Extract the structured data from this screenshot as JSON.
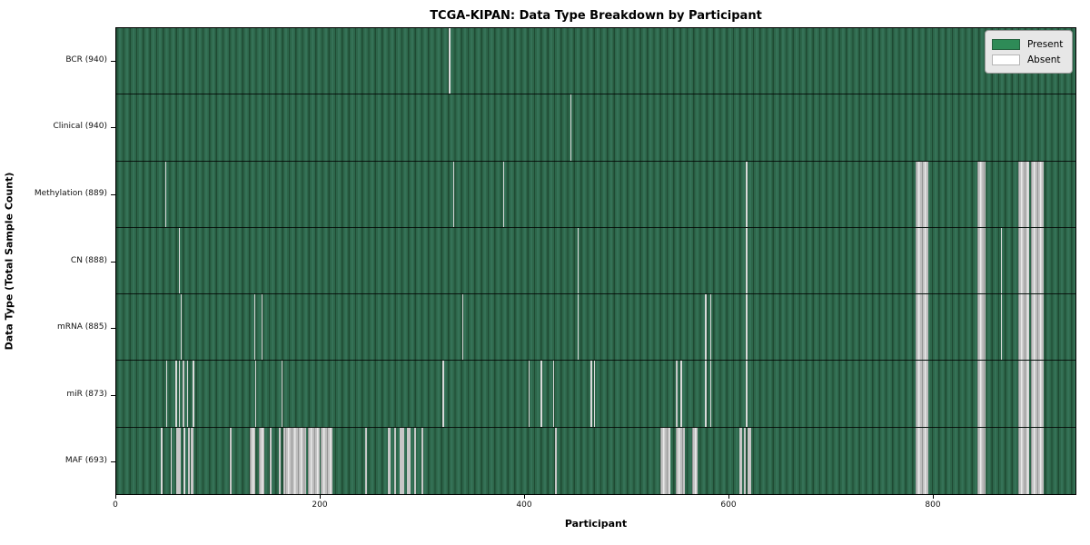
{
  "title": "TCGA-KIPAN: Data Type Breakdown by Participant",
  "axes": {
    "xlabel": "Participant",
    "ylabel": "Data Type (Total Sample Count)",
    "xticks": [
      0,
      200,
      400,
      600,
      800
    ],
    "x_range": [
      0,
      940
    ]
  },
  "legend": {
    "items": [
      {
        "label": "Present",
        "color": "#2e8b57"
      },
      {
        "label": "Absent",
        "color": "#ffffff"
      }
    ]
  },
  "colors": {
    "present_fill": "#2d664a",
    "present_edge": "#1f4a33",
    "absent_fill": "#c4c4c4",
    "frame": "#000000",
    "background": "#ffffff"
  },
  "chart_data": {
    "type": "heatmap",
    "title": "TCGA-KIPAN: Data Type Breakdown by Participant",
    "xlabel": "Participant",
    "ylabel": "Data Type (Total Sample Count)",
    "x_range": [
      0,
      940
    ],
    "legend": [
      "Present",
      "Absent"
    ],
    "note": "Each row is a data type; green = sample present for that participant, white/gray = absent. absent_runs are [start_participant, width_in_participants].",
    "rows": [
      {
        "label": "BCR (940)",
        "total": 940,
        "absent_runs": [
          [
            326,
            1
          ]
        ]
      },
      {
        "label": "Clinical (940)",
        "total": 940,
        "absent_runs": [
          [
            445,
            1
          ]
        ]
      },
      {
        "label": "Methylation (889)",
        "total": 889,
        "absent_runs": [
          [
            48,
            1
          ],
          [
            330,
            1
          ],
          [
            379,
            1
          ],
          [
            617,
            1
          ],
          [
            783,
            13
          ],
          [
            844,
            8
          ],
          [
            884,
            11
          ],
          [
            896,
            13
          ]
        ]
      },
      {
        "label": "CN (888)",
        "total": 888,
        "absent_runs": [
          [
            61,
            1
          ],
          [
            452,
            1
          ],
          [
            617,
            1
          ],
          [
            783,
            13
          ],
          [
            844,
            8
          ],
          [
            867,
            1
          ],
          [
            884,
            11
          ],
          [
            896,
            13
          ]
        ]
      },
      {
        "label": "mRNA (885)",
        "total": 885,
        "absent_runs": [
          [
            63,
            1
          ],
          [
            135,
            1
          ],
          [
            142,
            1
          ],
          [
            339,
            1
          ],
          [
            452,
            1
          ],
          [
            577,
            1
          ],
          [
            582,
            1
          ],
          [
            617,
            1
          ],
          [
            783,
            13
          ],
          [
            844,
            8
          ],
          [
            867,
            1
          ],
          [
            884,
            11
          ],
          [
            896,
            13
          ]
        ]
      },
      {
        "label": "miR (873)",
        "total": 873,
        "absent_runs": [
          [
            49,
            1
          ],
          [
            58,
            1
          ],
          [
            61,
            1
          ],
          [
            65,
            2
          ],
          [
            69,
            1
          ],
          [
            75,
            1
          ],
          [
            136,
            1
          ],
          [
            162,
            1
          ],
          [
            320,
            1
          ],
          [
            404,
            1
          ],
          [
            416,
            1
          ],
          [
            428,
            1
          ],
          [
            465,
            1
          ],
          [
            468,
            1
          ],
          [
            548,
            2
          ],
          [
            553,
            1
          ],
          [
            577,
            1
          ],
          [
            582,
            1
          ],
          [
            617,
            1
          ],
          [
            783,
            13
          ],
          [
            844,
            8
          ],
          [
            884,
            11
          ],
          [
            896,
            13
          ]
        ]
      },
      {
        "label": "MAF (693)",
        "total": 693,
        "absent_runs": [
          [
            44,
            1
          ],
          [
            53,
            1
          ],
          [
            59,
            4
          ],
          [
            66,
            1
          ],
          [
            70,
            2
          ],
          [
            73,
            3
          ],
          [
            111,
            2
          ],
          [
            131,
            5
          ],
          [
            140,
            5
          ],
          [
            150,
            2
          ],
          [
            159,
            2
          ],
          [
            164,
            2
          ],
          [
            166,
            20
          ],
          [
            188,
            11
          ],
          [
            200,
            12
          ],
          [
            244,
            2
          ],
          [
            266,
            3
          ],
          [
            272,
            2
          ],
          [
            278,
            4
          ],
          [
            285,
            3
          ],
          [
            292,
            2
          ],
          [
            299,
            2
          ],
          [
            430,
            2
          ],
          [
            533,
            10
          ],
          [
            548,
            9
          ],
          [
            564,
            6
          ],
          [
            611,
            2
          ],
          [
            615,
            2
          ],
          [
            619,
            3
          ],
          [
            783,
            13
          ],
          [
            844,
            8
          ],
          [
            884,
            11
          ],
          [
            896,
            13
          ]
        ]
      }
    ]
  }
}
